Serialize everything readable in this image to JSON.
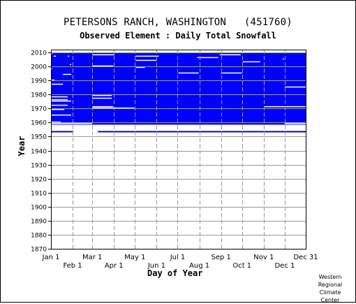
{
  "title": "PETERSONS RANCH, WASHINGTON   (451760)",
  "subtitle": "Observed Element : Daily Total Snowfall",
  "credit": [
    "Western",
    "Regional",
    "Climate",
    "Center"
  ],
  "chart_data": {
    "type": "heatmap",
    "title": "PETERSONS RANCH, WASHINGTON   (451760)",
    "subtitle": "Observed Element : Daily Total Snowfall",
    "xlabel": "Day of Year",
    "ylabel": "Year",
    "xlim": [
      1,
      365
    ],
    "ylim": [
      1870,
      2012
    ],
    "y_ticks": [
      1870,
      1880,
      1890,
      1900,
      1910,
      1920,
      1930,
      1940,
      1950,
      1960,
      1970,
      1980,
      1990,
      2000,
      2010
    ],
    "x_ticks_top": [
      {
        "label": "Jan 1",
        "day": 1
      },
      {
        "label": "Mar 1",
        "day": 60
      },
      {
        "label": "May 1",
        "day": 121
      },
      {
        "label": "Jul 1",
        "day": 182
      },
      {
        "label": "Sep 1",
        "day": 244
      },
      {
        "label": "Nov 1",
        "day": 305
      },
      {
        "label": "Dec 31",
        "day": 365
      }
    ],
    "x_ticks_bottom": [
      {
        "label": "Feb 1",
        "day": 32
      },
      {
        "label": "Apr 1",
        "day": 91
      },
      {
        "label": "Jun 1",
        "day": 152
      },
      {
        "label": "Aug 1",
        "day": 213
      },
      {
        "label": "Oct 1",
        "day": 274
      },
      {
        "label": "Dec 1",
        "day": 335
      }
    ],
    "grid": true,
    "colors": {
      "observed": "#0000ff",
      "grid": "#999999"
    },
    "observed_blocks": [
      {
        "year_start": 1958.5,
        "year_end": 2010,
        "day_start": 1,
        "day_end": 365
      },
      {
        "year_start": 1953,
        "year_end": 1954,
        "day_start": 1,
        "day_end": 33
      },
      {
        "year_start": 1953,
        "year_end": 1954,
        "day_start": 68,
        "day_end": 365
      }
    ],
    "missing_gaps": [
      {
        "year": 2009,
        "day_start": 1,
        "day_end": 3
      },
      {
        "year": 2008,
        "day_start": 60,
        "day_end": 92
      },
      {
        "year": 2008,
        "day_start": 242,
        "day_end": 272
      },
      {
        "year": 2007,
        "day_start": 5,
        "day_end": 8
      },
      {
        "year": 2007,
        "day_start": 25,
        "day_end": 27
      },
      {
        "year": 2007,
        "day_start": 122,
        "day_end": 155
      },
      {
        "year": 2006,
        "day_start": 210,
        "day_end": 240
      },
      {
        "year": 2005,
        "day_start": 332,
        "day_end": 334
      },
      {
        "year": 2004,
        "day_start": 122,
        "day_end": 152
      },
      {
        "year": 2003,
        "day_start": 275,
        "day_end": 300
      },
      {
        "year": 2001,
        "day_start": 28,
        "day_end": 30
      },
      {
        "year": 2000,
        "day_start": 60,
        "day_end": 90
      },
      {
        "year": 1999,
        "day_start": 122,
        "day_end": 135
      },
      {
        "year": 1998,
        "day_start": 1,
        "day_end": 2
      },
      {
        "year": 1995,
        "day_start": 183,
        "day_end": 212
      },
      {
        "year": 1995,
        "day_start": 244,
        "day_end": 274
      },
      {
        "year": 1994,
        "day_start": 18,
        "day_end": 30
      },
      {
        "year": 1990,
        "day_start": 1,
        "day_end": 6
      },
      {
        "year": 1987,
        "day_start": 1,
        "day_end": 18
      },
      {
        "year": 1985,
        "day_start": 335,
        "day_end": 365
      },
      {
        "year": 1979,
        "day_start": 60,
        "day_end": 88
      },
      {
        "year": 1978,
        "day_start": 1,
        "day_end": 25
      },
      {
        "year": 1977,
        "day_start": 60,
        "day_end": 88
      },
      {
        "year": 1976,
        "day_start": 1,
        "day_end": 25
      },
      {
        "year": 1975,
        "day_start": 1,
        "day_end": 30
      },
      {
        "year": 1972,
        "day_start": 1,
        "day_end": 25
      },
      {
        "year": 1971,
        "day_start": 60,
        "day_end": 90
      },
      {
        "year": 1971,
        "day_start": 305,
        "day_end": 365
      },
      {
        "year": 1969,
        "day_start": 1,
        "day_end": 20
      },
      {
        "year": 1970,
        "day_start": 60,
        "day_end": 120
      },
      {
        "year": 1965,
        "day_start": 1,
        "day_end": 30
      },
      {
        "year": 1960,
        "day_start": 1,
        "day_end": 15
      },
      {
        "year": 1959,
        "day_start": 1,
        "day_end": 60
      },
      {
        "year": 1959,
        "day_start": 335,
        "day_end": 365
      }
    ]
  }
}
